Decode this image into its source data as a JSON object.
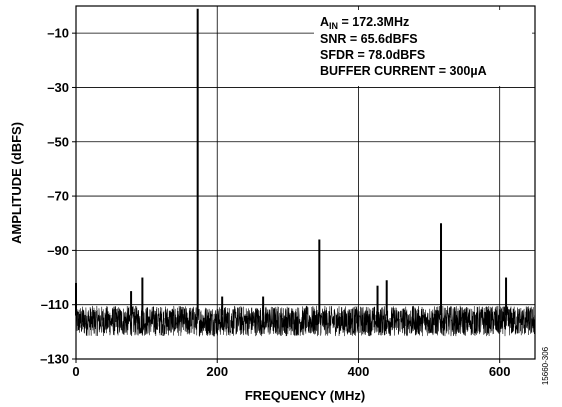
{
  "chart_data": {
    "type": "line",
    "title": "",
    "xlabel": "FREQUENCY (MHz)",
    "ylabel": "AMPLITUDE (dBFS)",
    "xlim": [
      0,
      650
    ],
    "ylim": [
      -130,
      0
    ],
    "x_ticks": [
      0,
      200,
      400,
      600
    ],
    "y_ticks": [
      -10,
      -30,
      -50,
      -70,
      -90,
      -110,
      -130
    ],
    "x_tick_labels": [
      "0",
      "200",
      "400",
      "600"
    ],
    "y_tick_labels": [
      "–10",
      "–30",
      "–50",
      "–70",
      "–90",
      "–110",
      "–130"
    ],
    "grid": true,
    "legend": "none",
    "line_color": "#000000",
    "annotations": [
      {
        "prefix": "A",
        "sub": "IN",
        "suffix": " = 172.3MHz"
      },
      {
        "text": "SNR = 65.6dBFS"
      },
      {
        "text": "SFDR = 78.0dBFS"
      },
      {
        "text": "BUFFER CURRENT = 300µA"
      }
    ],
    "noise_floor": {
      "center": -114,
      "min": -124,
      "max": -108
    },
    "peaks": [
      {
        "x": 0,
        "y": -102
      },
      {
        "x": 78,
        "y": -105
      },
      {
        "x": 94,
        "y": -100
      },
      {
        "x": 172.3,
        "y": -1
      },
      {
        "x": 207,
        "y": -107
      },
      {
        "x": 265,
        "y": -107
      },
      {
        "x": 344.6,
        "y": -86
      },
      {
        "x": 427,
        "y": -103
      },
      {
        "x": 440,
        "y": -101
      },
      {
        "x": 516.9,
        "y": -80
      },
      {
        "x": 609,
        "y": -100
      }
    ],
    "figure_id": "15660-306"
  }
}
